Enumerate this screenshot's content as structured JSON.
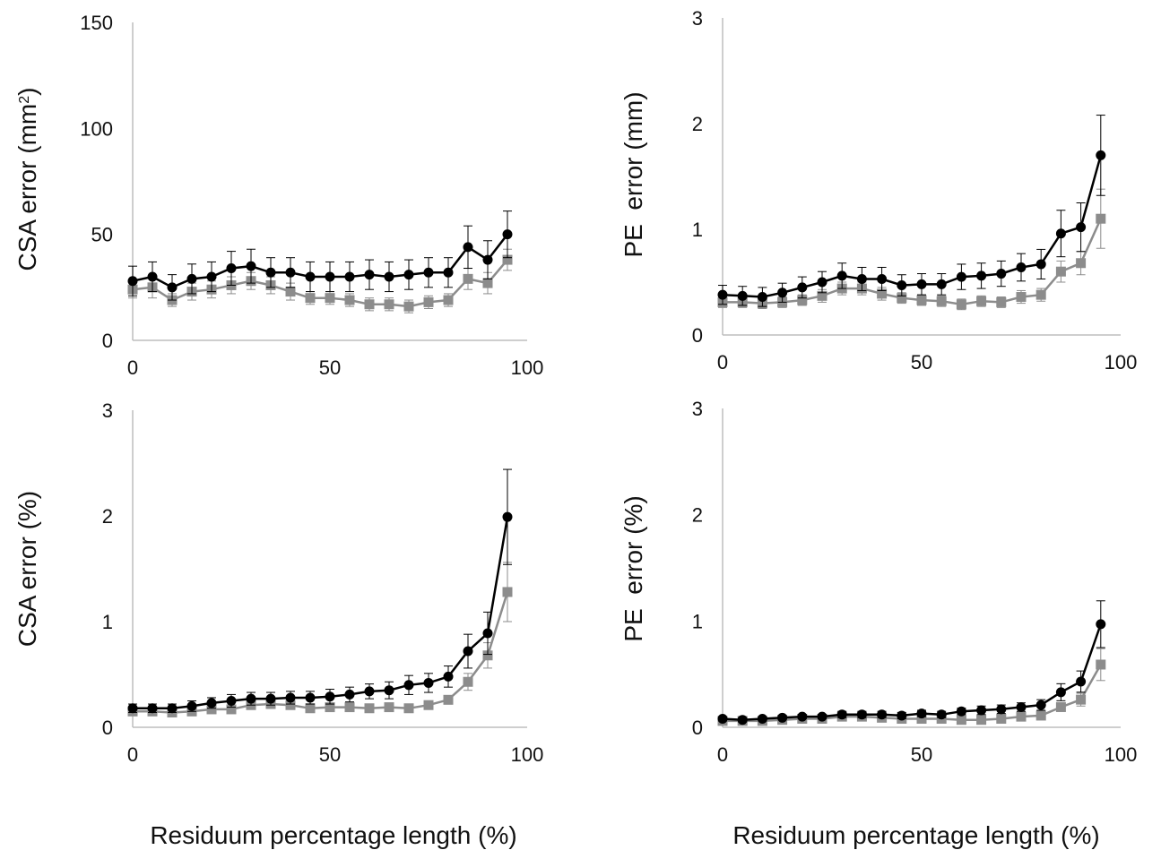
{
  "chart_data": [
    {
      "type": "line",
      "ylabel": "CSA error",
      "ylabel_unit_prefix": "(mm",
      "ylabel_unit_sup": "2",
      "ylabel_unit_suffix": ")",
      "xlabel": "",
      "xlim": [
        0,
        100
      ],
      "ylim": [
        0,
        150
      ],
      "xticks": [
        "0",
        "50",
        "100"
      ],
      "yticks": [
        "0",
        "50",
        "100",
        "150"
      ],
      "grid": false,
      "legend": "none",
      "x": [
        0,
        5,
        10,
        15,
        20,
        25,
        30,
        35,
        40,
        45,
        50,
        55,
        60,
        65,
        70,
        75,
        80,
        85,
        90,
        95
      ],
      "series": [
        {
          "marker": "circle",
          "color": "#000000",
          "values": [
            28,
            30,
            25,
            29,
            30,
            34,
            35,
            32,
            32,
            30,
            30,
            30,
            31,
            30,
            31,
            32,
            32,
            44,
            38,
            50
          ],
          "errors": [
            7,
            7,
            6,
            7,
            7,
            8,
            8,
            7,
            7,
            7,
            7,
            7,
            7,
            7,
            7,
            7,
            7,
            10,
            9,
            11
          ]
        },
        {
          "marker": "square",
          "color": "#8c8c8c",
          "values": [
            24,
            25,
            19,
            23,
            24,
            26,
            28,
            26,
            23,
            20,
            20,
            19,
            17,
            17,
            16,
            18,
            19,
            29,
            27,
            38
          ],
          "errors": [
            4,
            5,
            3,
            4,
            4,
            4,
            4,
            4,
            4,
            3,
            3,
            3,
            3,
            3,
            3,
            3,
            3,
            5,
            5,
            5
          ]
        }
      ]
    },
    {
      "type": "line",
      "ylabel": "PE  error (mm)",
      "xlabel": "",
      "xlim": [
        0,
        100
      ],
      "ylim": [
        0,
        3
      ],
      "xticks": [
        "0",
        "50",
        "100"
      ],
      "yticks": [
        "0",
        "1",
        "2",
        "3"
      ],
      "grid": false,
      "legend": "none",
      "x": [
        0,
        5,
        10,
        15,
        20,
        25,
        30,
        35,
        40,
        45,
        50,
        55,
        60,
        65,
        70,
        75,
        80,
        85,
        90,
        95
      ],
      "series": [
        {
          "marker": "circle",
          "color": "#000000",
          "values": [
            0.38,
            0.37,
            0.36,
            0.4,
            0.45,
            0.5,
            0.56,
            0.53,
            0.53,
            0.47,
            0.48,
            0.48,
            0.55,
            0.56,
            0.58,
            0.64,
            0.67,
            0.96,
            1.02,
            1.7
          ],
          "errors": [
            0.09,
            0.09,
            0.09,
            0.09,
            0.1,
            0.1,
            0.12,
            0.11,
            0.11,
            0.1,
            0.1,
            0.1,
            0.12,
            0.12,
            0.12,
            0.13,
            0.14,
            0.22,
            0.23,
            0.38
          ]
        },
        {
          "marker": "square",
          "color": "#8c8c8c",
          "values": [
            0.31,
            0.31,
            0.3,
            0.31,
            0.33,
            0.37,
            0.44,
            0.44,
            0.39,
            0.35,
            0.33,
            0.32,
            0.29,
            0.32,
            0.31,
            0.36,
            0.38,
            0.6,
            0.68,
            1.1
          ],
          "errors": [
            0.05,
            0.05,
            0.05,
            0.05,
            0.05,
            0.06,
            0.06,
            0.06,
            0.06,
            0.05,
            0.05,
            0.05,
            0.05,
            0.05,
            0.05,
            0.06,
            0.06,
            0.1,
            0.11,
            0.28
          ]
        }
      ]
    },
    {
      "type": "line",
      "ylabel": "CSA error (%)",
      "xlabel": "Residuum percentage length (%)",
      "xlim": [
        0,
        100
      ],
      "ylim": [
        0,
        3
      ],
      "xticks": [
        "0",
        "50",
        "100"
      ],
      "yticks": [
        "0",
        "1",
        "2",
        "3"
      ],
      "grid": false,
      "legend": "none",
      "x": [
        0,
        5,
        10,
        15,
        20,
        25,
        30,
        35,
        40,
        45,
        50,
        55,
        60,
        65,
        70,
        75,
        80,
        85,
        90,
        95
      ],
      "series": [
        {
          "marker": "circle",
          "color": "#000000",
          "values": [
            0.18,
            0.18,
            0.18,
            0.2,
            0.23,
            0.25,
            0.27,
            0.27,
            0.28,
            0.28,
            0.29,
            0.31,
            0.34,
            0.35,
            0.4,
            0.42,
            0.48,
            0.72,
            0.89,
            1.99
          ],
          "errors": [
            0.04,
            0.04,
            0.04,
            0.05,
            0.05,
            0.06,
            0.06,
            0.06,
            0.06,
            0.06,
            0.07,
            0.07,
            0.07,
            0.08,
            0.09,
            0.09,
            0.1,
            0.16,
            0.2,
            0.45
          ]
        },
        {
          "marker": "square",
          "color": "#8c8c8c",
          "values": [
            0.15,
            0.15,
            0.14,
            0.15,
            0.17,
            0.17,
            0.21,
            0.22,
            0.21,
            0.18,
            0.19,
            0.19,
            0.18,
            0.19,
            0.18,
            0.21,
            0.26,
            0.43,
            0.68,
            1.28
          ],
          "errors": [
            0.02,
            0.02,
            0.02,
            0.02,
            0.02,
            0.02,
            0.03,
            0.03,
            0.03,
            0.02,
            0.02,
            0.02,
            0.02,
            0.02,
            0.02,
            0.03,
            0.04,
            0.08,
            0.12,
            0.28
          ]
        }
      ]
    },
    {
      "type": "line",
      "ylabel": "PE  error (%)",
      "xlabel": "Residuum percentage length (%)",
      "xlim": [
        0,
        100
      ],
      "ylim": [
        0,
        3
      ],
      "xticks": [
        "0",
        "50",
        "100"
      ],
      "yticks": [
        "0",
        "1",
        "2",
        "3"
      ],
      "grid": false,
      "legend": "none",
      "x": [
        0,
        5,
        10,
        15,
        20,
        25,
        30,
        35,
        40,
        45,
        50,
        55,
        60,
        65,
        70,
        75,
        80,
        85,
        90,
        95
      ],
      "series": [
        {
          "marker": "circle",
          "color": "#000000",
          "values": [
            0.08,
            0.07,
            0.08,
            0.09,
            0.1,
            0.1,
            0.12,
            0.12,
            0.12,
            0.11,
            0.13,
            0.12,
            0.15,
            0.16,
            0.17,
            0.19,
            0.21,
            0.33,
            0.43,
            0.97
          ],
          "errors": [
            0.02,
            0.02,
            0.02,
            0.02,
            0.02,
            0.02,
            0.03,
            0.03,
            0.03,
            0.03,
            0.03,
            0.03,
            0.03,
            0.04,
            0.04,
            0.04,
            0.05,
            0.08,
            0.1,
            0.22
          ]
        },
        {
          "marker": "square",
          "color": "#8c8c8c",
          "values": [
            0.06,
            0.06,
            0.06,
            0.07,
            0.08,
            0.08,
            0.1,
            0.1,
            0.09,
            0.08,
            0.08,
            0.08,
            0.07,
            0.07,
            0.08,
            0.1,
            0.11,
            0.19,
            0.26,
            0.59
          ],
          "errors": [
            0.01,
            0.01,
            0.01,
            0.01,
            0.01,
            0.01,
            0.02,
            0.02,
            0.02,
            0.01,
            0.01,
            0.01,
            0.01,
            0.01,
            0.01,
            0.02,
            0.02,
            0.04,
            0.06,
            0.15
          ]
        }
      ]
    }
  ]
}
